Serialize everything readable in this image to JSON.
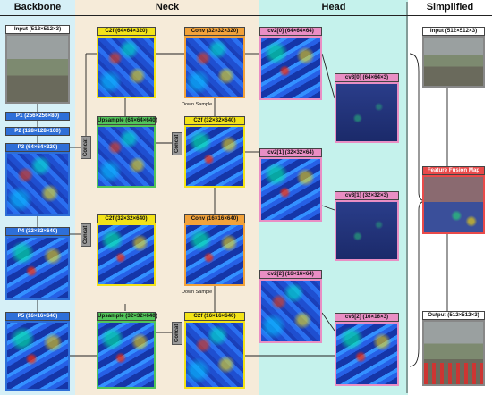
{
  "sections": {
    "backbone": "Backbone",
    "neck": "Neck",
    "head": "Head",
    "simplified": "Simplified"
  },
  "colors": {
    "backbone_bg": "#d6f0f7",
    "neck_bg": "#f6ebd9",
    "head_bg": "#c5f2ec",
    "simplified_bg": "#ffffff"
  },
  "backbone": {
    "input": "Input (512×512×3)",
    "p1": "P1 (256×256×80)",
    "p2": "P2 (128×128×160)",
    "p3": "P3 (64×64×320)",
    "p4": "P4 (32×32×640)",
    "p5": "P5 (16×16×640)"
  },
  "neck": {
    "c2f_1": "C2f (64×64×320)",
    "conv_1": "Conv (32×32×320)",
    "upsample_1": "Upsample (64×64×640)",
    "c2f_2": "C2f (32×32×640)",
    "c2f_3": "C2f (32×32×640)",
    "conv_2": "Conv (16×16×640)",
    "upsample_2": "Upsample (32×32×640)",
    "c2f_4": "C2f (16×16×640)",
    "down_sample_1": "Down Sample",
    "down_sample_2": "Down Sample",
    "concat": "Concat"
  },
  "head": {
    "cv2_0": "cv2[0] (64×64×64)",
    "cv3_0": "cv3[0] (64×64×3)",
    "cv2_1": "cv2[1] (32×32×64)",
    "cv3_1": "cv3[1] (32×32×3)",
    "cv2_2": "cv2[2] (16×16×64)",
    "cv3_2": "cv3[2] (16×16×3)"
  },
  "simplified": {
    "input": "Input (512×512×3)",
    "fusion": "Feature Fusion Map",
    "output": "Output (512×512×3)"
  }
}
